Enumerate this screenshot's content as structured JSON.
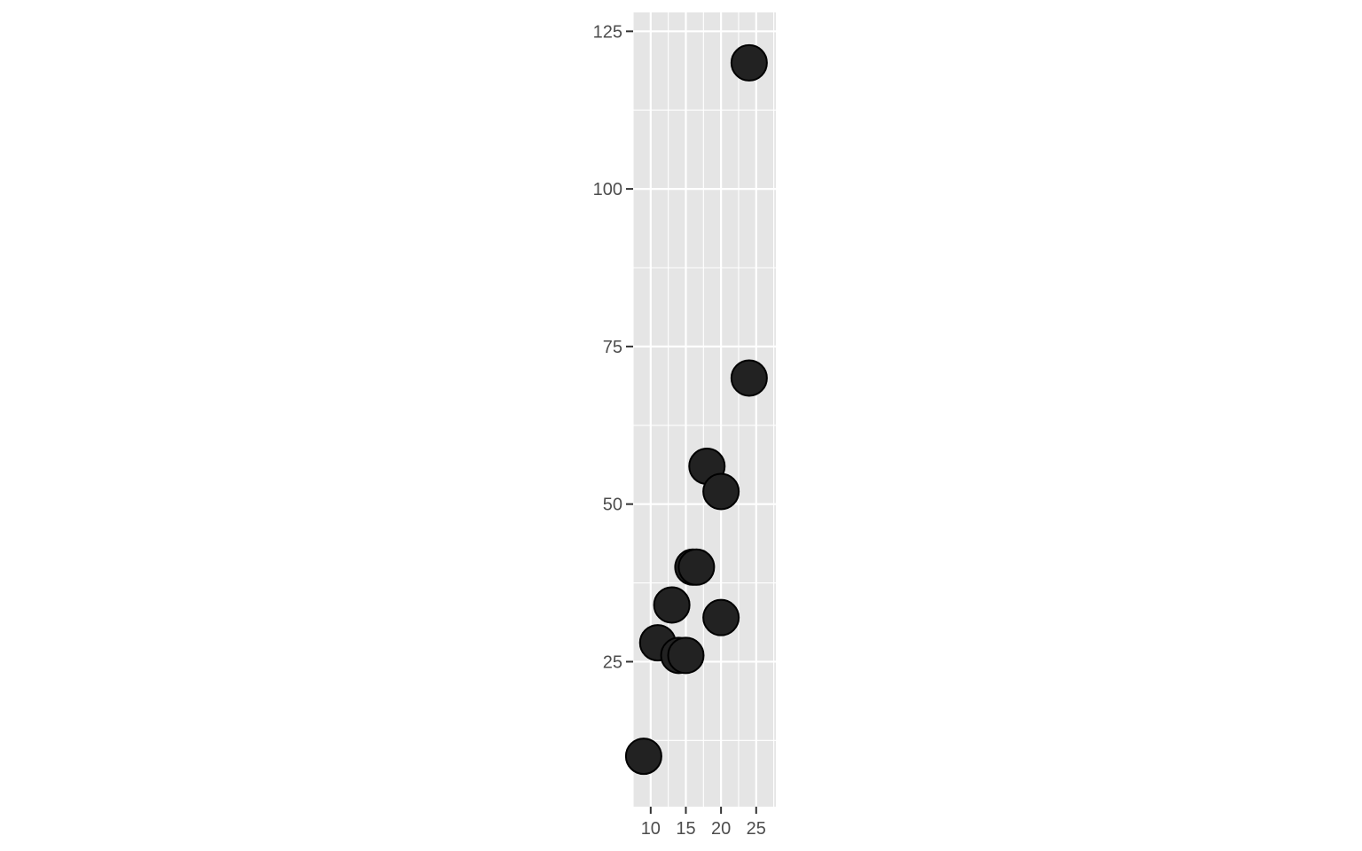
{
  "chart_data": {
    "type": "scatter",
    "title": "",
    "xlabel": "",
    "ylabel": "",
    "xlim": [
      7.5,
      27.8
    ],
    "ylim": [
      2,
      128
    ],
    "x_ticks": [
      10,
      15,
      20,
      25
    ],
    "x_tick_labels": [
      "10",
      "15",
      "20",
      "25"
    ],
    "y_ticks": [
      25,
      50,
      75,
      100,
      125
    ],
    "y_tick_labels": [
      "25",
      "50",
      "75",
      "100",
      "125"
    ],
    "grid": true,
    "legend": "none",
    "colors": {
      "panel": "#e5e5e5",
      "grid": "#ffffff",
      "point_fill": "#222222",
      "point_stroke": "#000000",
      "tick": "#333333",
      "tick_label": "#4d4d4d"
    },
    "series": [
      {
        "name": "points",
        "x": [
          9.0,
          11.0,
          13.0,
          14.0,
          15.0,
          16.0,
          16.5,
          18.0,
          20.0,
          20.0,
          24.0,
          24.0
        ],
        "y": [
          10,
          28,
          34,
          26,
          26,
          40,
          40,
          56,
          52,
          32,
          70,
          120
        ]
      }
    ]
  }
}
